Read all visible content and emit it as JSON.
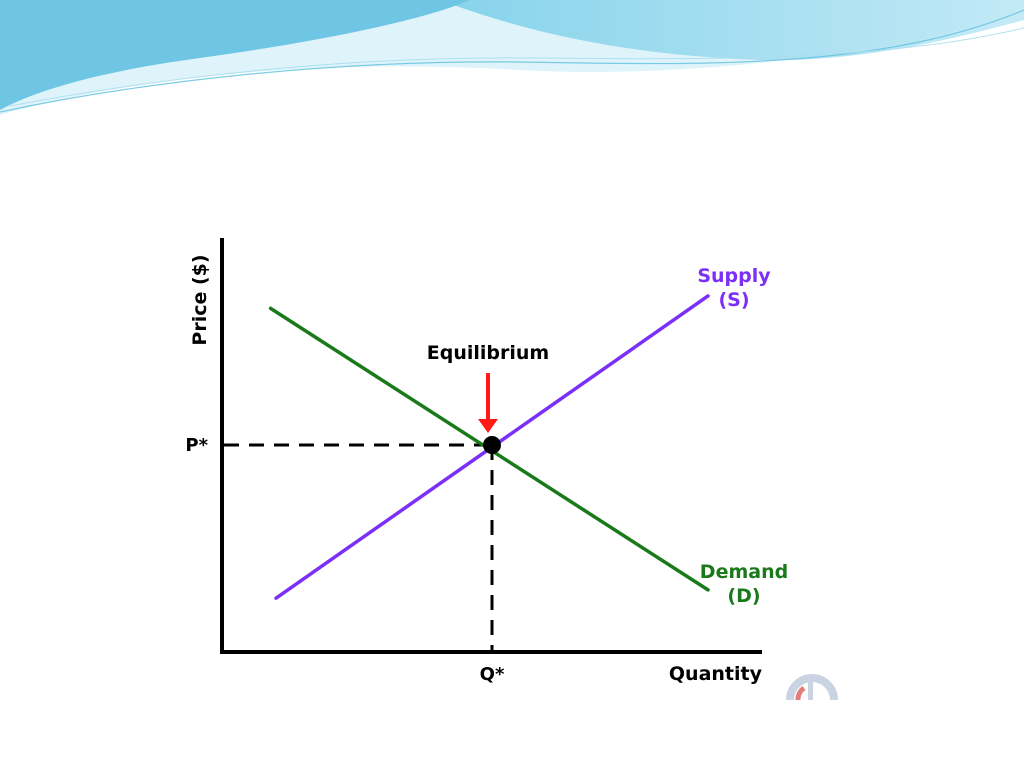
{
  "chart_data": {
    "type": "line",
    "title": "",
    "xlabel": "Quantity",
    "ylabel": "Price ($)",
    "xlim": [
      0,
      10
    ],
    "ylim": [
      0,
      10
    ],
    "grid": false,
    "legend": "none",
    "x_tick_labels": [
      {
        "x": 5,
        "label": "Q*"
      }
    ],
    "y_tick_labels": [
      {
        "y": 5,
        "label": "P*"
      }
    ],
    "series": [
      {
        "name": "Supply\n(S)",
        "name_lines": [
          "Supply",
          "(S)"
        ],
        "color": "#7b2ff7",
        "x": [
          1,
          9
        ],
        "y": [
          1.3,
          8.6
        ]
      },
      {
        "name": "Demand\n(D)",
        "name_lines": [
          "Demand",
          "(D)"
        ],
        "color": "#1a7a1a",
        "x": [
          0.9,
          9
        ],
        "y": [
          8.3,
          1.5
        ]
      }
    ],
    "equilibrium": {
      "x": 5,
      "y": 5,
      "label": "Equilibrium",
      "arrow_color": "#ff1a1a",
      "point_color": "#000000"
    },
    "guide_lines": {
      "style": "dashed",
      "color": "#000000"
    }
  },
  "colors": {
    "axis": "#000000",
    "tick_text": "#000000",
    "slide_wave_light": "#d8f3f9",
    "slide_wave_mid": "#8fd6ec",
    "slide_wave_dark": "#49b7dd"
  },
  "decorations": {
    "watermark_icon": "partial-circle-logo-icon"
  }
}
